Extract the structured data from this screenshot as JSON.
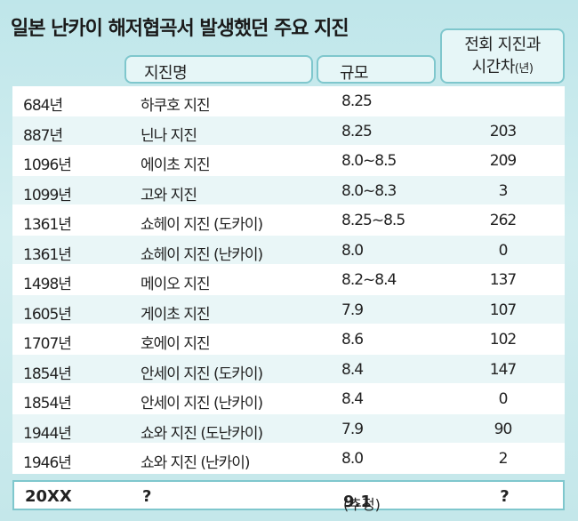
{
  "title": "일본 난카이 해저협곡서 발생했던 주요 지진",
  "headers": {
    "name": "지진명",
    "magnitude": "규모",
    "gap_line1": "전회 지진과",
    "gap_line2": "시간차",
    "gap_unit": "(년)"
  },
  "rows": [
    {
      "year": "684년",
      "name": "하쿠호 지진",
      "magnitude": "8.25",
      "gap": ""
    },
    {
      "year": "887년",
      "name": "닌나 지진",
      "magnitude": "8.25",
      "gap": "203"
    },
    {
      "year": "1096년",
      "name": "에이초 지진",
      "magnitude": "8.0~8.5",
      "gap": "209"
    },
    {
      "year": "1099년",
      "name": "고와 지진",
      "magnitude": "8.0~8.3",
      "gap": "3"
    },
    {
      "year": "1361년",
      "name": "쇼헤이 지진 (도카이)",
      "magnitude": "8.25~8.5",
      "gap": "262"
    },
    {
      "year": "1361년",
      "name": "쇼헤이 지진 (난카이)",
      "magnitude": "8.0",
      "gap": "0"
    },
    {
      "year": "1498년",
      "name": "메이오 지진",
      "magnitude": "8.2~8.4",
      "gap": "137"
    },
    {
      "year": "1605년",
      "name": "게이초 지진",
      "magnitude": "7.9",
      "gap": "107"
    },
    {
      "year": "1707년",
      "name": "호에이 지진",
      "magnitude": "8.6",
      "gap": "102"
    },
    {
      "year": "1854년",
      "name": "안세이 지진 (도카이)",
      "magnitude": "8.4",
      "gap": "147"
    },
    {
      "year": "1854년",
      "name": "안세이 지진 (난카이)",
      "magnitude": "8.4",
      "gap": "0"
    },
    {
      "year": "1944년",
      "name": "쇼와 지진 (도난카이)",
      "magnitude": "7.9",
      "gap": "90"
    },
    {
      "year": "1946년",
      "name": "쇼와 지진 (난카이)",
      "magnitude": "8.0",
      "gap": "2"
    }
  ],
  "last_row": {
    "year": "20XX",
    "name": "?",
    "magnitude": "9.1",
    "magnitude_note": "(추정)",
    "gap": "?"
  }
}
